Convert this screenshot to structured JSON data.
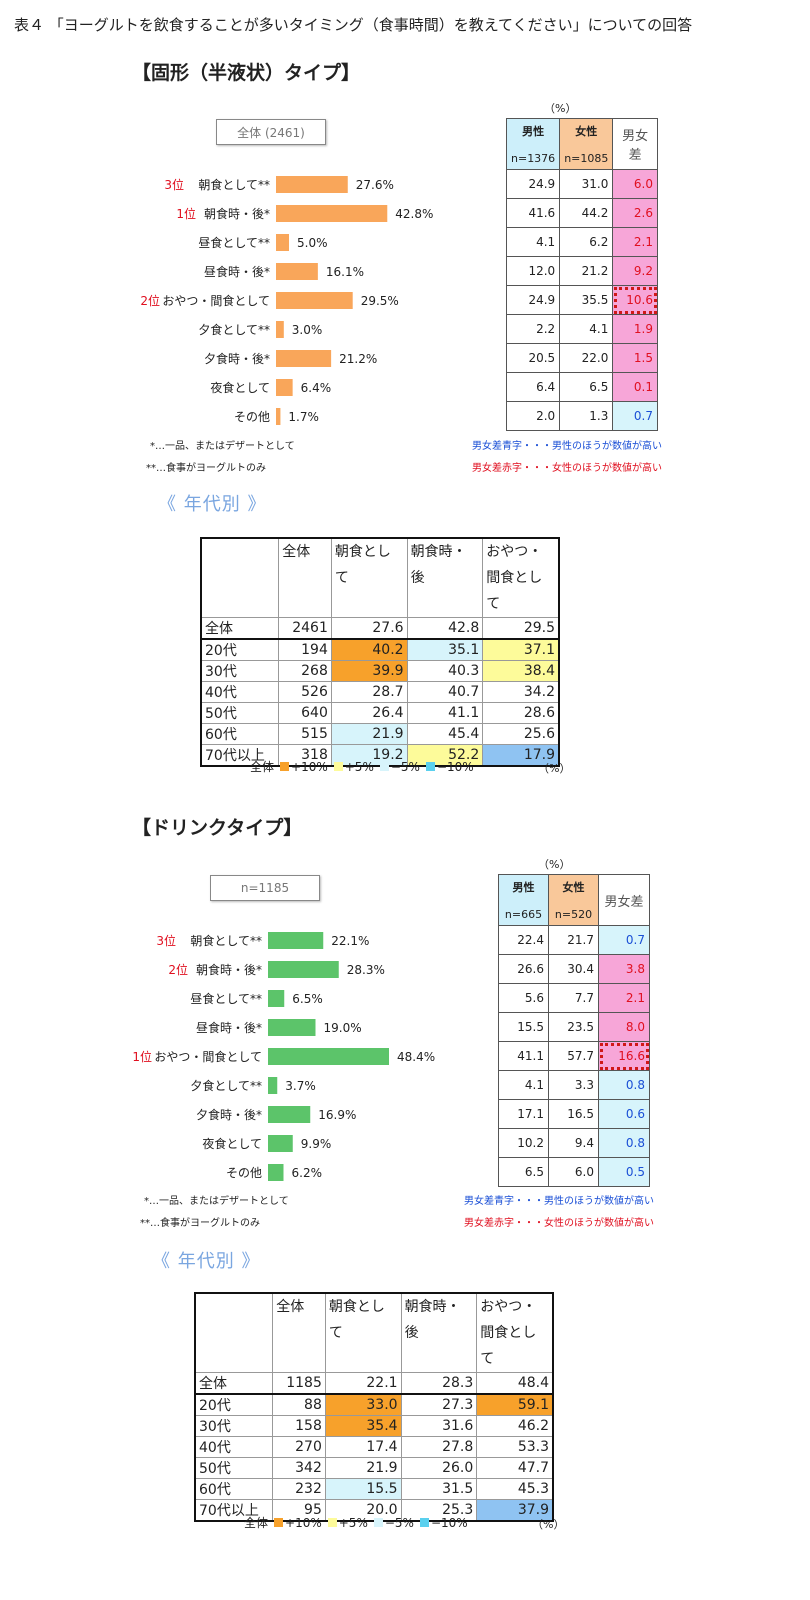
{
  "page_title": "表４ 「ヨーグルトを飲食することが多いタイミング（食事時間）を教えてください」についての回答",
  "colors": {
    "solid_bar": "#f9a65a",
    "drink_bar": "#5cc46a",
    "rank_red": "#e01020",
    "diff_pos": "#f7a6d8",
    "diff_neg": "#d7f4fb",
    "male_header": "#cdeffa",
    "female_header": "#f9c89a",
    "age_plus10": "#f7a12b",
    "age_plus5": "#fdfb9a",
    "age_minus5": "#d7f4fb",
    "age_minus10": "#8fc3f2"
  },
  "pct_unit": "（%）",
  "gender_headers": {
    "male": "男性",
    "female": "女性",
    "diff": "男女差"
  },
  "age_header": {
    "total": "全体",
    "breakfast": "朝食とし\nて",
    "after_breakfast": "朝食時・\n後",
    "snack": "おやつ・\n間食とし\nて"
  },
  "legend": {
    "label": "全体",
    "plus10": "+10%",
    "plus5": "+5%",
    "minus5": "−5%",
    "minus10": "−10%"
  },
  "sections": [
    {
      "title": "【固形（半液状）タイプ】",
      "n_label": "全体 (2461)",
      "male_n": "n=1376",
      "female_n": "n=1085",
      "era_title": "《 年代別 》",
      "notes": [
        "*…一品、またはデザートとして",
        "**…食事がヨーグルトのみ"
      ],
      "diff_notes": [
        "男女差青字・・・男性のほうが数値が高い",
        "男女差赤字・・・女性のほうが数値が高い"
      ],
      "chart_data": {
        "type": "bar",
        "orientation": "horizontal",
        "bar_color": "#f9a65a",
        "categories": [
          "朝食として**",
          "朝食時・後*",
          "昼食として**",
          "昼食時・後*",
          "おやつ・間食として",
          "夕食として**",
          "夕食時・後*",
          "夜食として",
          "その他"
        ],
        "ranks": [
          "3位",
          "1位",
          "",
          "",
          "2位",
          "",
          "",
          "",
          ""
        ],
        "values": [
          27.6,
          42.8,
          5.0,
          16.1,
          29.5,
          3.0,
          21.2,
          6.4,
          1.7
        ],
        "value_labels": [
          "27.6%",
          "42.8%",
          "5.0%",
          "16.1%",
          "29.5%",
          "3.0%",
          "21.2%",
          "6.4%",
          "1.7%"
        ],
        "unit": "%"
      },
      "gender_table": [
        {
          "male": "24.9",
          "female": "31.0",
          "diff": "6.0",
          "sign": "pos"
        },
        {
          "male": "41.6",
          "female": "44.2",
          "diff": "2.6",
          "sign": "pos"
        },
        {
          "male": "4.1",
          "female": "6.2",
          "diff": "2.1",
          "sign": "pos"
        },
        {
          "male": "12.0",
          "female": "21.2",
          "diff": "9.2",
          "sign": "pos"
        },
        {
          "male": "24.9",
          "female": "35.5",
          "diff": "10.6",
          "sign": "pos",
          "highlight": true
        },
        {
          "male": "2.2",
          "female": "4.1",
          "diff": "1.9",
          "sign": "pos"
        },
        {
          "male": "20.5",
          "female": "22.0",
          "diff": "1.5",
          "sign": "pos"
        },
        {
          "male": "6.4",
          "female": "6.5",
          "diff": "0.1",
          "sign": "pos"
        },
        {
          "male": "2.0",
          "female": "1.3",
          "diff": "0.7",
          "sign": "neg"
        }
      ],
      "age_table": [
        {
          "label": "全体",
          "n": "2461",
          "v": [
            "27.6",
            "42.8",
            "29.5"
          ],
          "c": [
            "",
            "",
            ""
          ]
        },
        {
          "label": "20代",
          "n": "194",
          "v": [
            "40.2",
            "35.1",
            "37.1"
          ],
          "c": [
            "o",
            "lb",
            "y"
          ]
        },
        {
          "label": "30代",
          "n": "268",
          "v": [
            "39.9",
            "40.3",
            "38.4"
          ],
          "c": [
            "o",
            "",
            "y"
          ]
        },
        {
          "label": "40代",
          "n": "526",
          "v": [
            "28.7",
            "40.7",
            "34.2"
          ],
          "c": [
            "",
            "",
            ""
          ]
        },
        {
          "label": "50代",
          "n": "640",
          "v": [
            "26.4",
            "41.1",
            "28.6"
          ],
          "c": [
            "",
            "",
            ""
          ]
        },
        {
          "label": "60代",
          "n": "515",
          "v": [
            "21.9",
            "45.4",
            "25.6"
          ],
          "c": [
            "lb",
            "",
            ""
          ]
        },
        {
          "label": "70代以上",
          "n": "318",
          "v": [
            "19.2",
            "52.2",
            "17.9"
          ],
          "c": [
            "lb",
            "y",
            "b"
          ]
        }
      ]
    },
    {
      "title": "【ドリンクタイプ】",
      "n_label": "n=1185",
      "male_n": "n=665",
      "female_n": "n=520",
      "era_title": "《 年代別 》",
      "notes": [
        "*…一品、またはデザートとして",
        "**…食事がヨーグルトのみ"
      ],
      "diff_notes": [
        "男女差青字・・・男性のほうが数値が高い",
        "男女差赤字・・・女性のほうが数値が高い"
      ],
      "chart_data": {
        "type": "bar",
        "orientation": "horizontal",
        "bar_color": "#5cc46a",
        "categories": [
          "朝食として**",
          "朝食時・後*",
          "昼食として**",
          "昼食時・後*",
          "おやつ・間食として",
          "夕食として**",
          "夕食時・後*",
          "夜食として",
          "その他"
        ],
        "ranks": [
          "3位",
          "2位",
          "",
          "",
          "1位",
          "",
          "",
          "",
          ""
        ],
        "values": [
          22.1,
          28.3,
          6.5,
          19.0,
          48.4,
          3.7,
          16.9,
          9.9,
          6.2
        ],
        "value_labels": [
          "22.1%",
          "28.3%",
          "6.5%",
          "19.0%",
          "48.4%",
          "3.7%",
          "16.9%",
          "9.9%",
          "6.2%"
        ],
        "unit": "%"
      },
      "gender_table": [
        {
          "male": "22.4",
          "female": "21.7",
          "diff": "0.7",
          "sign": "neg"
        },
        {
          "male": "26.6",
          "female": "30.4",
          "diff": "3.8",
          "sign": "pos"
        },
        {
          "male": "5.6",
          "female": "7.7",
          "diff": "2.1",
          "sign": "pos"
        },
        {
          "male": "15.5",
          "female": "23.5",
          "diff": "8.0",
          "sign": "pos"
        },
        {
          "male": "41.1",
          "female": "57.7",
          "diff": "16.6",
          "sign": "pos",
          "highlight": true
        },
        {
          "male": "4.1",
          "female": "3.3",
          "diff": "0.8",
          "sign": "neg"
        },
        {
          "male": "17.1",
          "female": "16.5",
          "diff": "0.6",
          "sign": "neg"
        },
        {
          "male": "10.2",
          "female": "9.4",
          "diff": "0.8",
          "sign": "neg"
        },
        {
          "male": "6.5",
          "female": "6.0",
          "diff": "0.5",
          "sign": "neg"
        }
      ],
      "age_table": [
        {
          "label": "全体",
          "n": "1185",
          "v": [
            "22.1",
            "28.3",
            "48.4"
          ],
          "c": [
            "",
            "",
            ""
          ]
        },
        {
          "label": "20代",
          "n": "88",
          "v": [
            "33.0",
            "27.3",
            "59.1"
          ],
          "c": [
            "o",
            "",
            "o"
          ]
        },
        {
          "label": "30代",
          "n": "158",
          "v": [
            "35.4",
            "31.6",
            "46.2"
          ],
          "c": [
            "o",
            "",
            ""
          ]
        },
        {
          "label": "40代",
          "n": "270",
          "v": [
            "17.4",
            "27.8",
            "53.3"
          ],
          "c": [
            "",
            "",
            ""
          ]
        },
        {
          "label": "50代",
          "n": "342",
          "v": [
            "21.9",
            "26.0",
            "47.7"
          ],
          "c": [
            "",
            "",
            ""
          ]
        },
        {
          "label": "60代",
          "n": "232",
          "v": [
            "15.5",
            "31.5",
            "45.3"
          ],
          "c": [
            "lb",
            "",
            ""
          ]
        },
        {
          "label": "70代以上",
          "n": "95",
          "v": [
            "20.0",
            "25.3",
            "37.9"
          ],
          "c": [
            "",
            "",
            "b"
          ]
        }
      ]
    }
  ]
}
